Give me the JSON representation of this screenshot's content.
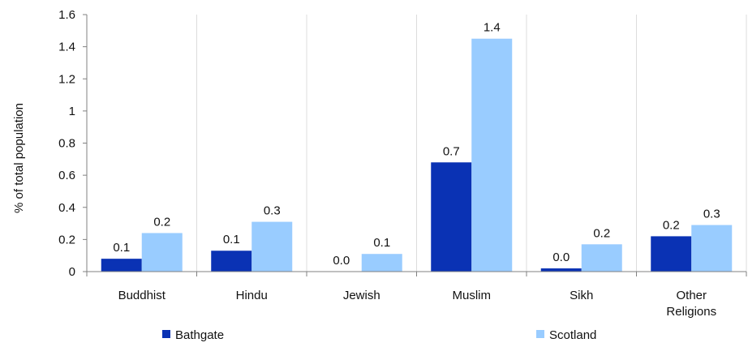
{
  "chart_data": {
    "type": "bar",
    "title": "",
    "xlabel": "",
    "ylabel": "% of total population",
    "ylim": [
      0,
      1.6
    ],
    "yticks": [
      "0",
      "0.2",
      "0.4",
      "0.6",
      "0.8",
      "1",
      "1.2",
      "1.4",
      "1.6"
    ],
    "categories": [
      [
        "Buddhist"
      ],
      [
        "Hindu"
      ],
      [
        "Jewish"
      ],
      [
        "Muslim"
      ],
      [
        "Sikh"
      ],
      [
        "Other",
        "Religions"
      ]
    ],
    "series": [
      {
        "name": "Bathgate",
        "color": "#0a32b4",
        "values": [
          0.08,
          0.13,
          0.0,
          0.68,
          0.02,
          0.22
        ],
        "labels": [
          "0.1",
          "0.1",
          "0.0",
          "0.7",
          "0.0",
          "0.2"
        ]
      },
      {
        "name": "Scotland",
        "color": "#99ccff",
        "values": [
          0.24,
          0.31,
          0.11,
          1.45,
          0.17,
          0.29
        ],
        "labels": [
          "0.2",
          "0.3",
          "0.1",
          "1.4",
          "0.2",
          "0.3"
        ]
      }
    ],
    "grid": {
      "vertical": true,
      "horizontal": false
    },
    "legend": {
      "position": "bottom"
    }
  }
}
